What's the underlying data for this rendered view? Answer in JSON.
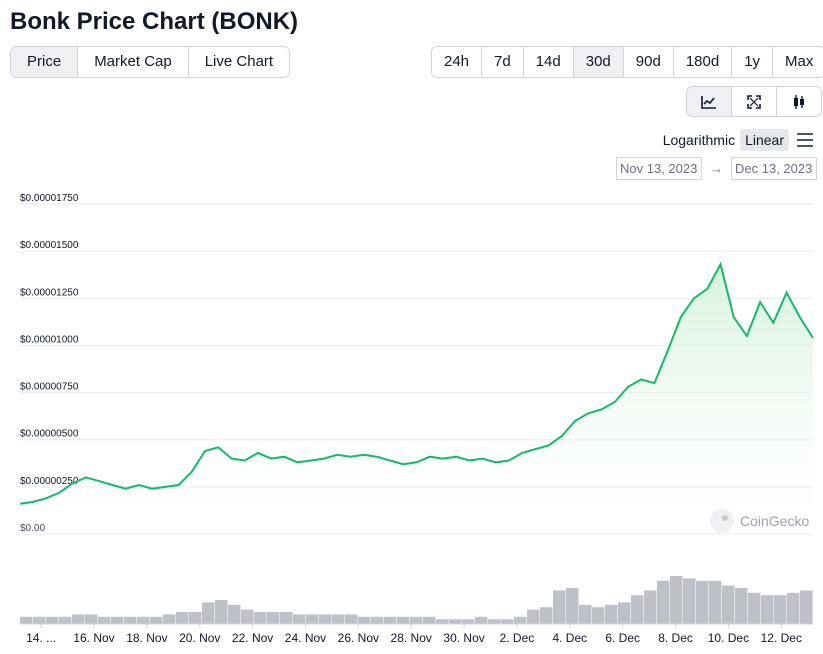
{
  "title": "Bonk Price Chart (BONK)",
  "main_tabs": [
    "Price",
    "Market Cap",
    "Live Chart"
  ],
  "range_tabs": [
    "24h",
    "7d",
    "14d",
    "30d",
    "90d",
    "180d",
    "1y",
    "Max"
  ],
  "scale": {
    "log_label": "Logarithmic",
    "linear_label": "Linear"
  },
  "date_range": {
    "from": "Nov 13, 2023",
    "arrow": "→",
    "to": "Dec 13, 2023"
  },
  "watermark": "CoinGecko",
  "colors": {
    "line": "#16b86a",
    "fill_top": "#d6f2dc",
    "volume": "#aeb3ba",
    "grid": "#e5e7eb"
  },
  "chart_data": {
    "type": "area",
    "y_ticks": [
      "$0.00",
      "$0.00000250",
      "$0.00000500",
      "$0.00000750",
      "$0.00001000",
      "$0.00001250",
      "$0.00001500",
      "$0.00001750"
    ],
    "ylim": [
      0,
      1.75e-05
    ],
    "x_ticks": [
      "14. ...",
      "16. Nov",
      "18. Nov",
      "20. Nov",
      "22. Nov",
      "24. Nov",
      "26. Nov",
      "28. Nov",
      "30. Nov",
      "2. Dec",
      "4. Dec",
      "6. Dec",
      "8. Dec",
      "10. Dec",
      "12. Dec"
    ],
    "xlim_days": [
      0,
      30
    ],
    "series": [
      {
        "values_x_days": [
          0,
          0.5,
          1,
          1.5,
          2,
          2.5,
          3,
          3.5,
          4,
          4.5,
          5,
          5.5,
          6,
          6.5,
          7,
          7.5,
          8,
          8.5,
          9,
          9.5,
          10,
          10.5,
          11,
          11.5,
          12,
          12.5,
          13,
          13.5,
          14,
          14.5,
          15,
          15.5,
          16,
          16.5,
          17,
          17.5,
          18,
          18.5,
          19,
          19.5,
          20,
          20.5,
          21,
          21.5,
          22,
          22.5,
          23,
          23.5,
          24,
          24.5,
          25,
          25.5,
          26,
          26.5,
          27,
          27.5,
          28,
          28.5,
          29,
          29.5,
          30
        ],
        "values": [
          1.6e-06,
          1.7e-06,
          1.9e-06,
          2.2e-06,
          2.7e-06,
          3e-06,
          2.8e-06,
          2.6e-06,
          2.4e-06,
          2.6e-06,
          2.4e-06,
          2.5e-06,
          2.6e-06,
          3.3e-06,
          4.4e-06,
          4.6e-06,
          4e-06,
          3.9e-06,
          4.3e-06,
          4e-06,
          4.1e-06,
          3.8e-06,
          3.9e-06,
          4e-06,
          4.2e-06,
          4.1e-06,
          4.2e-06,
          4.1e-06,
          3.9e-06,
          3.7e-06,
          3.8e-06,
          4.1e-06,
          4e-06,
          4.1e-06,
          3.9e-06,
          4e-06,
          3.8e-06,
          3.9e-06,
          4.3e-06,
          4.5e-06,
          4.7e-06,
          5.2e-06,
          6e-06,
          6.4e-06,
          6.6e-06,
          7e-06,
          7.8e-06,
          8.2e-06,
          8e-06,
          9.7e-06,
          1.15e-05,
          1.25e-05,
          1.3e-05,
          1.43e-05,
          1.15e-05,
          1.05e-05,
          1.23e-05,
          1.12e-05,
          1.28e-05,
          1.15e-05,
          1.04e-05
        ]
      }
    ],
    "volume": [
      3,
      3,
      3,
      3,
      4,
      4,
      3,
      3,
      3,
      3,
      3,
      4,
      5,
      5,
      9,
      10,
      8,
      6,
      5,
      5,
      5,
      4,
      4,
      4,
      4,
      4,
      3,
      3,
      3,
      3,
      3,
      3,
      2,
      2,
      2,
      3,
      2,
      2,
      3,
      6,
      7,
      14,
      15,
      8,
      7,
      8,
      9,
      12,
      14,
      18,
      20,
      19,
      18,
      18,
      16,
      15,
      13,
      12,
      12,
      13,
      14
    ]
  }
}
